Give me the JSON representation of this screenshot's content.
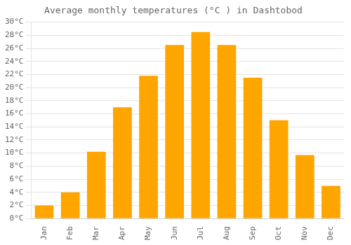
{
  "chart_data": {
    "type": "bar",
    "title": "Average monthly temperatures (°C ) in Dashtobod",
    "categories": [
      "Jan",
      "Feb",
      "Mar",
      "Apr",
      "May",
      "Jun",
      "Jul",
      "Aug",
      "Sep",
      "Oct",
      "Nov",
      "Dec"
    ],
    "values": [
      2.0,
      4.0,
      10.2,
      17.0,
      21.8,
      26.5,
      28.5,
      26.5,
      21.5,
      15.0,
      9.7,
      5.0
    ],
    "color": "#FFA500",
    "ylim": [
      0,
      30
    ],
    "yticks": [
      {
        "value": 0,
        "label": "0°C"
      },
      {
        "value": 2,
        "label": "2°C"
      },
      {
        "value": 4,
        "label": "4°C"
      },
      {
        "value": 6,
        "label": "6°C"
      },
      {
        "value": 8,
        "label": "8°C"
      },
      {
        "value": 10,
        "label": "10°C"
      },
      {
        "value": 12,
        "label": "12°C"
      },
      {
        "value": 14,
        "label": "14°C"
      },
      {
        "value": 16,
        "label": "16°C"
      },
      {
        "value": 18,
        "label": "18°C"
      },
      {
        "value": 20,
        "label": "20°C"
      },
      {
        "value": 22,
        "label": "22°C"
      },
      {
        "value": 24,
        "label": "24°C"
      },
      {
        "value": 26,
        "label": "26°C"
      },
      {
        "value": 28,
        "label": "28°C"
      },
      {
        "value": 30,
        "label": "30°C"
      }
    ],
    "grid": true
  }
}
